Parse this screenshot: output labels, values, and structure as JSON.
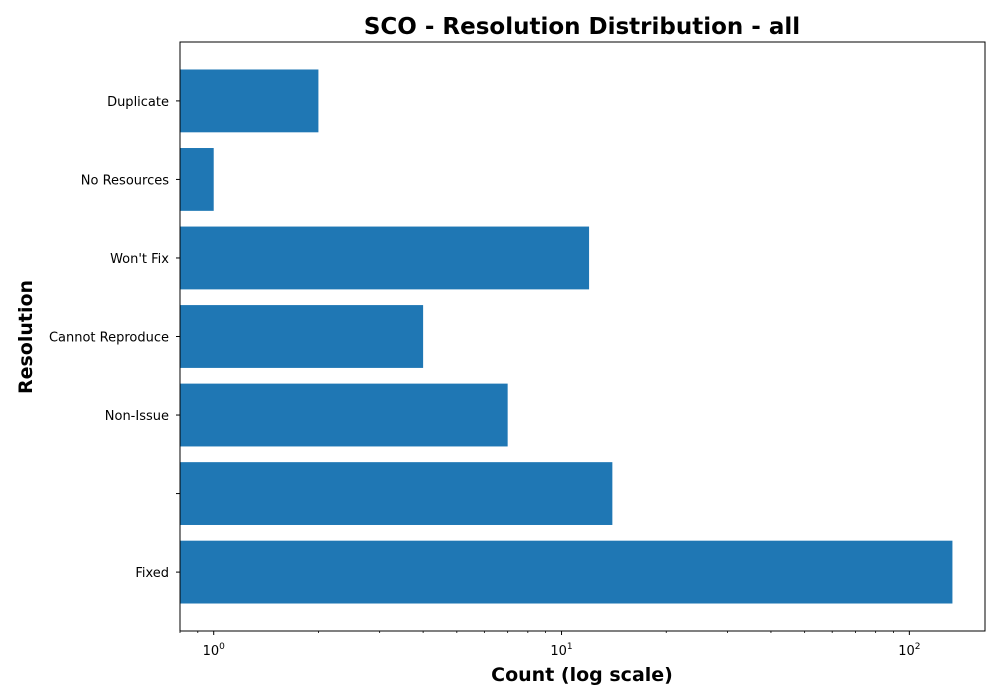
{
  "chart_data": {
    "type": "bar",
    "orientation": "horizontal",
    "title": "SCO - Resolution Distribution - all",
    "xlabel": "Count (log scale)",
    "ylabel": "Resolution",
    "xscale": "log",
    "xlim": [
      0.8,
      165
    ],
    "categories": [
      "Fixed",
      "",
      "Non-Issue",
      "Cannot Reproduce",
      "Won't Fix",
      "No Resources",
      "Duplicate"
    ],
    "values": [
      133,
      14,
      7,
      4,
      12,
      1,
      2
    ],
    "x_ticks": [
      {
        "value": 1,
        "base": "10",
        "exp": "0"
      },
      {
        "value": 10,
        "base": "10",
        "exp": "1"
      },
      {
        "value": 100,
        "base": "10",
        "exp": "2"
      }
    ],
    "bar_color": "#1f77b4",
    "grid": false
  }
}
